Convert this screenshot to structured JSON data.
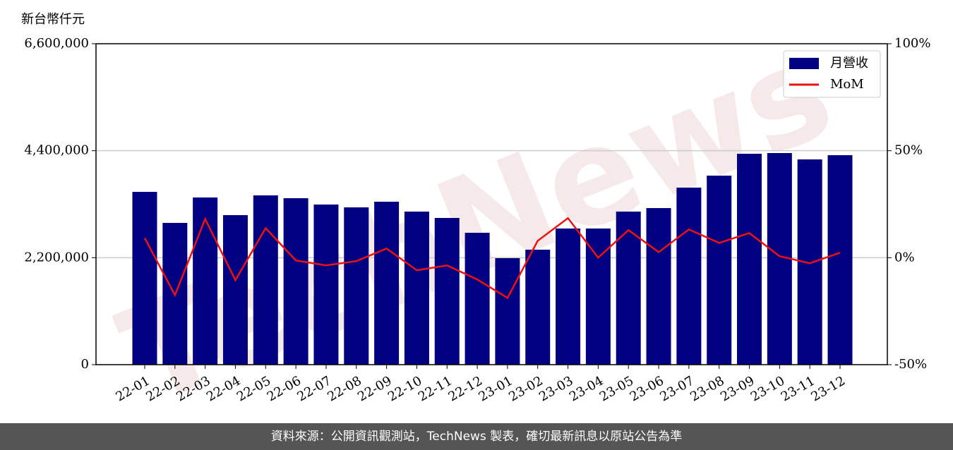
{
  "chart_data": {
    "type": "bar",
    "y_label": "新台幣仟元",
    "watermark": "TechNews",
    "footer": "資料來源：公開資訊觀測站，TechNews 製表，確切最新訊息以原站公告為準",
    "categories": [
      "22-01",
      "22-02",
      "22-03",
      "22-04",
      "22-05",
      "22-06",
      "22-07",
      "22-08",
      "22-09",
      "22-10",
      "22-11",
      "22-12",
      "23-01",
      "23-02",
      "23-03",
      "23-04",
      "23-05",
      "23-06",
      "23-07",
      "23-08",
      "23-09",
      "23-10",
      "23-11",
      "23-12"
    ],
    "series": [
      {
        "name": "月營收",
        "type": "bar",
        "color": "#000080",
        "values": [
          3554000,
          2915000,
          3438000,
          3075000,
          3481000,
          3423000,
          3293000,
          3235000,
          3351000,
          3148000,
          3017000,
          2712000,
          2190000,
          2364000,
          2800000,
          2800000,
          3148000,
          3220000,
          3641000,
          3887000,
          4337000,
          4352000,
          4221000,
          4308000
        ]
      },
      {
        "name": "MoM",
        "type": "line",
        "color": "#ee1111",
        "axis": "y2",
        "values": [
          9.2,
          -17.5,
          18.1,
          -10.5,
          13.8,
          -1.3,
          -3.6,
          -1.6,
          4.3,
          -5.9,
          -3.6,
          -10.2,
          -18.8,
          7.9,
          18.5,
          0,
          12.9,
          2.6,
          13.2,
          6.9,
          11.5,
          0.7,
          -2.6,
          2.3
        ]
      }
    ],
    "ylim": [
      0,
      6600000
    ],
    "yticks": [
      0,
      {
        "value": 2200000,
        "label": "2,200,000"
      },
      {
        "value": 4400000,
        "label": "4,400,000"
      },
      {
        "value": 6600000,
        "label": "6,600,000"
      }
    ],
    "y2lim": [
      -50,
      100
    ],
    "y2ticks": [
      {
        "value": -50,
        "label": "-50%"
      },
      {
        "value": 0,
        "label": "0%"
      },
      {
        "value": 50,
        "label": "50%"
      },
      {
        "value": 100,
        "label": "100%"
      }
    ],
    "grid": true,
    "legend": "upper right"
  }
}
